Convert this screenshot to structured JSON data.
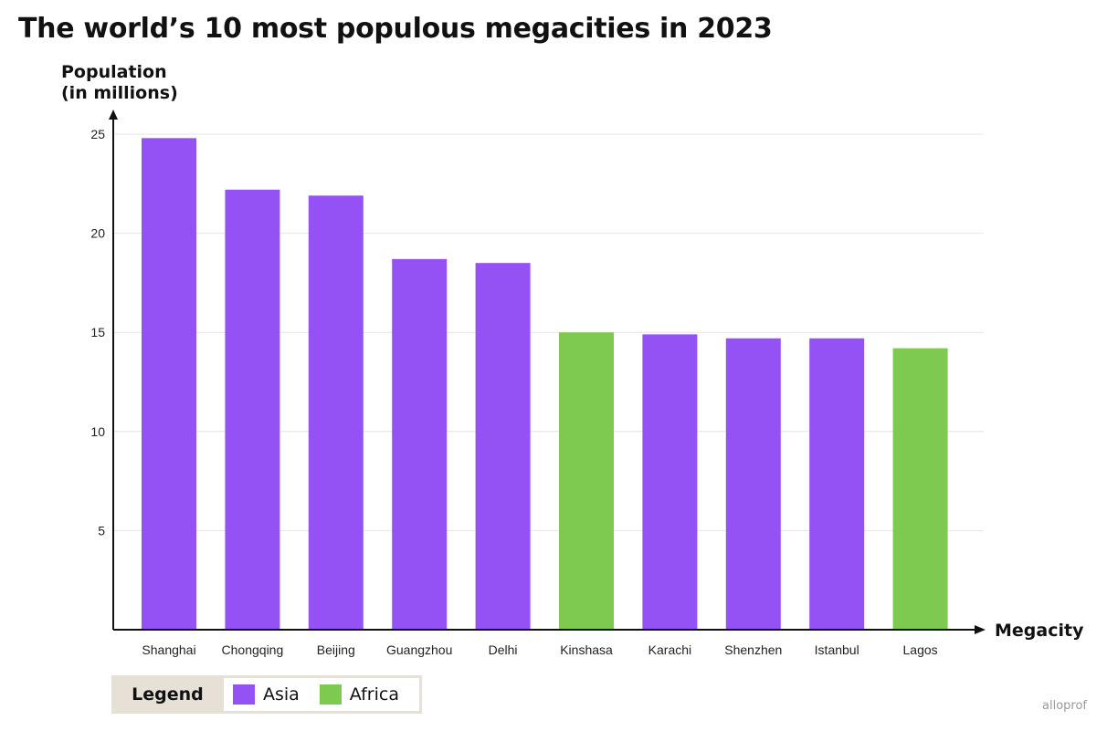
{
  "chart_data": {
    "type": "bar",
    "title": "The world’s 10 most populous megacities in 2023",
    "ylabel_line1": "Population",
    "ylabel_line2": "(in millions)",
    "xlabel": "Megacity",
    "categories": [
      "Shanghai",
      "Chongqing",
      "Beijing",
      "Guangzhou",
      "Delhi",
      "Kinshasa",
      "Karachi",
      "Shenzhen",
      "Istanbul",
      "Lagos"
    ],
    "values": [
      24.8,
      22.2,
      21.9,
      18.7,
      18.5,
      15.0,
      14.9,
      14.7,
      14.7,
      14.2
    ],
    "regions": [
      "Asia",
      "Asia",
      "Asia",
      "Asia",
      "Asia",
      "Africa",
      "Asia",
      "Asia",
      "Asia",
      "Africa"
    ],
    "ylim": [
      0,
      25
    ],
    "yticks": [
      5,
      10,
      15,
      20,
      25
    ],
    "grid": true,
    "legend_position": "bottom-left"
  },
  "legend": {
    "title": "Legend",
    "items": [
      {
        "label": "Asia",
        "color": "#9452f5"
      },
      {
        "label": "Africa",
        "color": "#7ec94f"
      }
    ]
  },
  "colors": {
    "Asia": "#9452f5",
    "Africa": "#7ec94f",
    "axis": "#111111",
    "grid": "#e4e4e4"
  },
  "brand": "alloprof"
}
